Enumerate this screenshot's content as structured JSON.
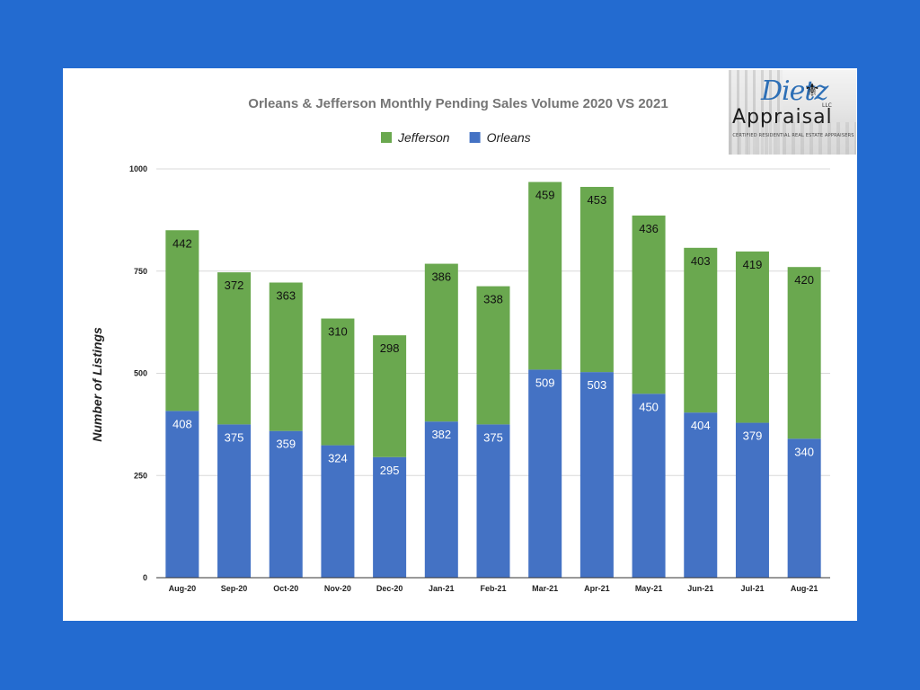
{
  "chart_data": {
    "type": "bar",
    "stacked": true,
    "title": "Orleans & Jefferson  Monthly Pending Sales Volume 2020 VS 2021",
    "ylabel": "Number of Listings",
    "xlabel": "",
    "ylim": [
      0,
      1000
    ],
    "yticks": [
      "0",
      "250",
      "500",
      "750",
      "1000"
    ],
    "legend_position": "top",
    "grid": true,
    "categories": [
      "Aug-20",
      "Sep-20",
      "Oct-20",
      "Nov-20",
      "Dec-20",
      "Jan-21",
      "Feb-21",
      "Mar-21",
      "Apr-21",
      "May-21",
      "Jun-21",
      "Jul-21",
      "Aug-21"
    ],
    "series": [
      {
        "name": "Orleans",
        "color": "#4472c4",
        "values": [
          408,
          375,
          359,
          324,
          295,
          382,
          375,
          509,
          503,
          450,
          404,
          379,
          340
        ]
      },
      {
        "name": "Jefferson",
        "color": "#6aa84f",
        "values": [
          442,
          372,
          363,
          310,
          298,
          386,
          338,
          459,
          453,
          436,
          403,
          419,
          420
        ]
      }
    ]
  },
  "logo": {
    "script": "Dietz",
    "llc": "LLC",
    "word": "Appraisal",
    "tagline": "CERTIFIED RESIDENTIAL REAL ESTATE APPRAISERS"
  }
}
